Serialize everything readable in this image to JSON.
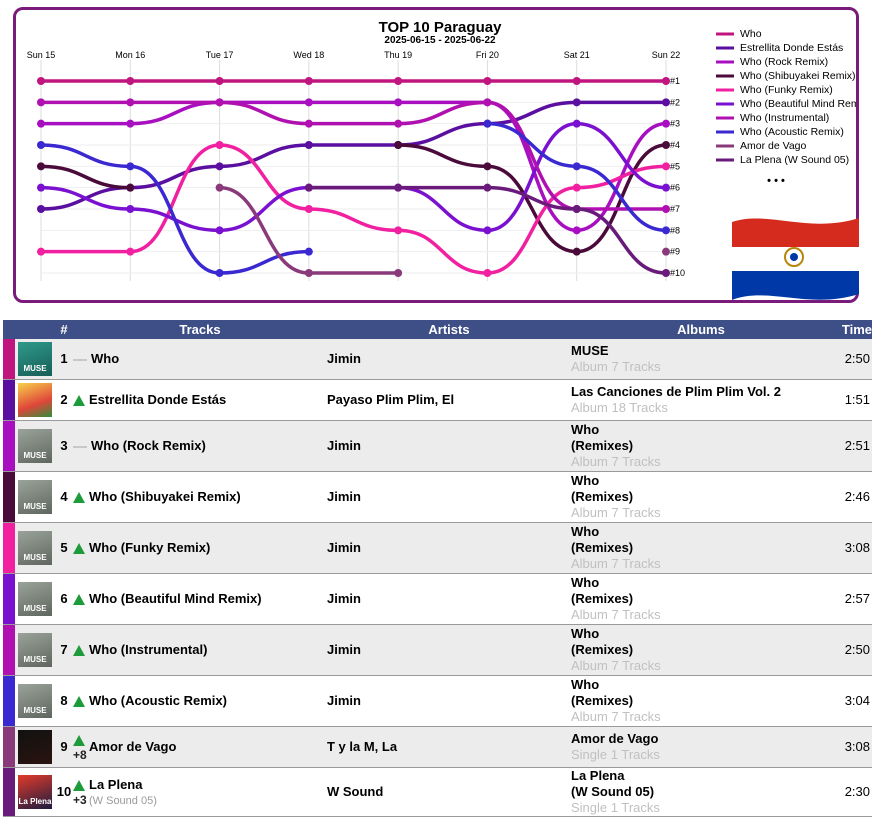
{
  "chart_data": {
    "type": "line",
    "title": "TOP 10 Paraguay",
    "subtitle": "2025-06-15 - 2025-06-22",
    "categories": [
      "Sun 15",
      "Mon 16",
      "Tue 17",
      "Wed 18",
      "Thu 19",
      "Fri 20",
      "Sat 21",
      "Sun 22"
    ],
    "rank_labels": [
      "#1",
      "#2",
      "#3",
      "#4",
      "#5",
      "#6",
      "#7",
      "#8",
      "#9",
      "#10"
    ],
    "ylim": [
      1,
      10
    ],
    "legend_position": "right",
    "legend_more": "• • •",
    "series": [
      {
        "name": "Who",
        "color": "#c0157f",
        "values": [
          1,
          1,
          1,
          1,
          1,
          1,
          1,
          1
        ]
      },
      {
        "name": "Estrellita Donde Estás",
        "color": "#5a0fa0",
        "values": [
          7,
          6,
          5,
          4,
          4,
          3,
          2,
          2
        ]
      },
      {
        "name": "Who (Rock Remix)",
        "color": "#a80fc0",
        "values": [
          3,
          3,
          2,
          2,
          2,
          2,
          8,
          3
        ]
      },
      {
        "name": "Who (Shibuyakei Remix)",
        "color": "#4a0a3a",
        "values": [
          5,
          6,
          null,
          null,
          4,
          5,
          9,
          4
        ]
      },
      {
        "name": "Who (Funky Remix)",
        "color": "#f020a0",
        "values": [
          9,
          9,
          4,
          7,
          8,
          10,
          6,
          5
        ]
      },
      {
        "name": "Who (Beautiful Mind Remix)",
        "color": "#7a10d0",
        "values": [
          6,
          7,
          8,
          6,
          6,
          8,
          3,
          6
        ]
      },
      {
        "name": "Who (Instrumental)",
        "color": "#b010b0",
        "values": [
          2,
          2,
          2,
          3,
          3,
          2,
          7,
          7
        ]
      },
      {
        "name": "Who (Acoustic Remix)",
        "color": "#3a28d0",
        "values": [
          4,
          5,
          10,
          9,
          null,
          3,
          5,
          8
        ]
      },
      {
        "name": "Amor de Vago",
        "color": "#8a3a7a",
        "values": [
          null,
          null,
          6,
          10,
          10,
          null,
          null,
          9
        ]
      },
      {
        "name": "La Plena (W Sound 05)",
        "color": "#6a1a7a",
        "values": [
          null,
          null,
          null,
          6,
          6,
          6,
          7,
          10
        ]
      }
    ]
  },
  "table": {
    "headers": {
      "rank": "#",
      "tracks": "Tracks",
      "artists": "Artists",
      "albums": "Albums",
      "time": "Time"
    },
    "rows": [
      {
        "rank": "1",
        "trend": "same",
        "delta": "",
        "track": "Who",
        "track_sub": "",
        "artist": "Jimin",
        "album_l1": "MUSE",
        "album_l2": "",
        "album_sub": "Album 7 Tracks",
        "time": "2:50",
        "color": "#c0157f",
        "thumb": "muse1",
        "thumb_text": "MUSE"
      },
      {
        "rank": "2",
        "trend": "up",
        "delta": "",
        "track": "Estrellita Donde Estás",
        "track_sub": "",
        "artist": "Payaso Plim Plim, El",
        "album_l1": "Las Canciones de Plim Plim Vol. 2",
        "album_l2": "",
        "album_sub": "Album 18 Tracks",
        "time": "1:51",
        "color": "#5a0fa0",
        "thumb": "plim",
        "thumb_text": ""
      },
      {
        "rank": "3",
        "trend": "same",
        "delta": "",
        "track": "Who (Rock Remix)",
        "track_sub": "",
        "artist": "Jimin",
        "album_l1": "Who",
        "album_l2": "(Remixes)",
        "album_sub": "Album 7 Tracks",
        "time": "2:51",
        "color": "#a80fc0",
        "thumb": "muse",
        "thumb_text": "MUSE"
      },
      {
        "rank": "4",
        "trend": "up",
        "delta": "",
        "track": "Who (Shibuyakei Remix)",
        "track_sub": "",
        "artist": "Jimin",
        "album_l1": "Who",
        "album_l2": "(Remixes)",
        "album_sub": "Album 7 Tracks",
        "time": "2:46",
        "color": "#4a0a3a",
        "thumb": "muse",
        "thumb_text": "MUSE"
      },
      {
        "rank": "5",
        "trend": "up",
        "delta": "",
        "track": "Who (Funky Remix)",
        "track_sub": "",
        "artist": "Jimin",
        "album_l1": "Who",
        "album_l2": "(Remixes)",
        "album_sub": "Album 7 Tracks",
        "time": "3:08",
        "color": "#f020a0",
        "thumb": "muse",
        "thumb_text": "MUSE"
      },
      {
        "rank": "6",
        "trend": "up",
        "delta": "",
        "track": "Who (Beautiful Mind Remix)",
        "track_sub": "",
        "artist": "Jimin",
        "album_l1": "Who",
        "album_l2": "(Remixes)",
        "album_sub": "Album 7 Tracks",
        "time": "2:57",
        "color": "#7a10d0",
        "thumb": "muse",
        "thumb_text": "MUSE"
      },
      {
        "rank": "7",
        "trend": "up",
        "delta": "",
        "track": "Who (Instrumental)",
        "track_sub": "",
        "artist": "Jimin",
        "album_l1": "Who",
        "album_l2": "(Remixes)",
        "album_sub": "Album 7 Tracks",
        "time": "2:50",
        "color": "#b010b0",
        "thumb": "muse",
        "thumb_text": "MUSE"
      },
      {
        "rank": "8",
        "trend": "up",
        "delta": "",
        "track": "Who (Acoustic Remix)",
        "track_sub": "",
        "artist": "Jimin",
        "album_l1": "Who",
        "album_l2": "(Remixes)",
        "album_sub": "Album 7 Tracks",
        "time": "3:04",
        "color": "#3a28d0",
        "thumb": "muse",
        "thumb_text": "MUSE"
      },
      {
        "rank": "9",
        "trend": "up",
        "delta": "+8",
        "track": "Amor de Vago",
        "track_sub": "",
        "artist": "T y la M, La",
        "album_l1": "Amor de Vago",
        "album_l2": "",
        "album_sub": "Single 1 Tracks",
        "time": "3:08",
        "color": "#8a3a7a",
        "thumb": "vago",
        "thumb_text": ""
      },
      {
        "rank": "10",
        "trend": "up",
        "delta": "+3",
        "track": "La Plena",
        "track_sub": "(W Sound 05)",
        "artist": "W Sound",
        "album_l1": "La Plena",
        "album_l2": "(W Sound 05)",
        "album_sub": "Single 1 Tracks",
        "time": "2:30",
        "color": "#6a1a7a",
        "thumb": "plena",
        "thumb_text": "La Plena"
      }
    ]
  }
}
